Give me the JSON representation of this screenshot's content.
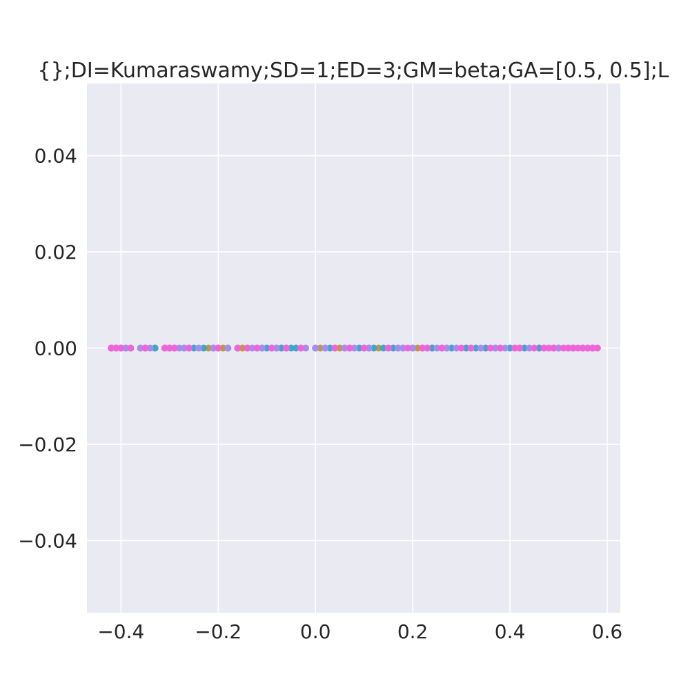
{
  "chart_data": {
    "type": "scatter",
    "title": "{};DI=Kumaraswamy;SD=1;ED=3;GM=beta;GA=[0.5, 0.5];L",
    "xlabel": "",
    "ylabel": "",
    "xlim": [
      -0.47,
      0.627
    ],
    "ylim": [
      -0.055,
      0.055
    ],
    "xticks": [
      -0.4,
      -0.2,
      0.0,
      0.2,
      0.4,
      0.6
    ],
    "xtick_labels": [
      "−0.4",
      "−0.2",
      "0.0",
      "0.2",
      "0.4",
      "0.6"
    ],
    "yticks": [
      0.04,
      0.02,
      0.0,
      -0.02,
      -0.04
    ],
    "ytick_labels": [
      "0.04",
      "0.02",
      "0.00",
      "−0.02",
      "−0.04"
    ],
    "grid": true,
    "background": "#eaeaf2",
    "series": [
      {
        "color": "#c49a2f",
        "y": 0.0,
        "x": [
          -0.42,
          -0.41,
          -0.39,
          -0.36,
          -0.33,
          -0.3,
          -0.26,
          -0.22,
          -0.19,
          -0.15,
          -0.11,
          -0.07,
          -0.03,
          0.01,
          0.05,
          0.07,
          0.1,
          0.13,
          0.17,
          0.21,
          0.24,
          0.27,
          0.31,
          0.35,
          0.38,
          0.42,
          0.46,
          0.49,
          0.52,
          0.55,
          0.57
        ]
      },
      {
        "color": "#3da6cc",
        "y": 0.0,
        "x": [
          -0.42,
          -0.4,
          -0.38,
          -0.35,
          -0.33,
          -0.31,
          -0.29,
          -0.27,
          -0.25,
          -0.23,
          -0.21,
          -0.2,
          -0.18,
          -0.16,
          -0.14,
          -0.12,
          -0.1,
          -0.09,
          -0.08,
          -0.07,
          -0.06,
          -0.05,
          -0.04,
          0.0,
          0.02,
          0.03,
          0.06,
          0.09,
          0.11,
          0.12,
          0.14,
          0.16,
          0.18,
          0.2,
          0.22,
          0.24,
          0.26,
          0.28,
          0.31,
          0.33,
          0.35,
          0.37,
          0.4,
          0.43,
          0.46,
          0.5,
          0.53,
          0.56
        ]
      },
      {
        "color": "#a58cf0",
        "y": 0.0,
        "x": [
          -0.42,
          -0.39,
          -0.36,
          -0.34,
          -0.3,
          -0.28,
          -0.27,
          -0.24,
          -0.21,
          -0.18,
          -0.16,
          -0.13,
          -0.11,
          -0.08,
          -0.06,
          -0.02,
          0.0,
          0.02,
          0.04,
          0.06,
          0.08,
          0.11,
          0.15,
          0.17,
          0.18,
          0.2,
          0.23,
          0.25,
          0.27,
          0.29,
          0.32,
          0.34,
          0.37,
          0.39,
          0.41,
          0.44,
          0.47,
          0.5,
          0.53,
          0.55,
          0.57
        ]
      },
      {
        "color": "#f064d8",
        "y": 0.0,
        "x": [
          -0.42,
          -0.41,
          -0.4,
          -0.38,
          -0.35,
          -0.31,
          -0.3,
          -0.29,
          -0.26,
          -0.2,
          -0.16,
          -0.14,
          -0.12,
          -0.09,
          -0.06,
          -0.03,
          0.04,
          0.07,
          0.1,
          0.15,
          0.19,
          0.22,
          0.23,
          0.26,
          0.3,
          0.32,
          0.36,
          0.38,
          0.41,
          0.42,
          0.45,
          0.47,
          0.48,
          0.49,
          0.51,
          0.52,
          0.53,
          0.54,
          0.55,
          0.56,
          0.57,
          0.58
        ]
      }
    ]
  }
}
